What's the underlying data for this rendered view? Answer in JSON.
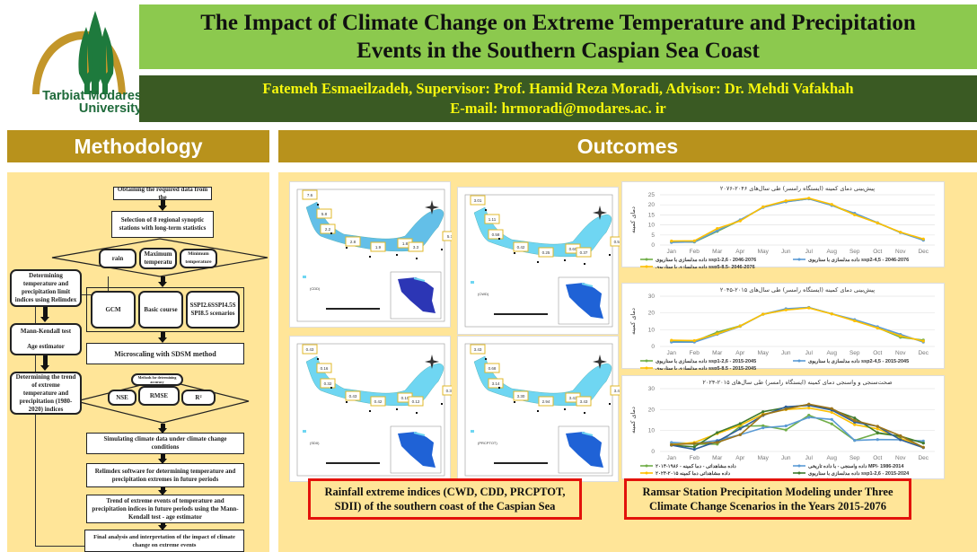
{
  "header": {
    "university": [
      "Tarbiat Modares",
      "University"
    ],
    "title_lines": [
      "The Impact of Climate Change on Extreme Temperature and Precipitation",
      "Events in the Southern Caspian Sea Coast"
    ],
    "authors": "Fatemeh Esmaeilzadeh, Supervisor: Prof. Hamid Reza Moradi, Advisor: Dr. Mehdi Vafakhah",
    "email": "E-mail: hrmoradi@modares.ac. ir"
  },
  "sections": {
    "methodology": "Methodology",
    "outcomes": "Outcomes"
  },
  "flowchart": {
    "obtain": "Obtaining the required data from the",
    "selection": "Selection of 8 regional synoptic stations with long-term statistics",
    "rain": "rain",
    "max_temp": "Maximum temperatu",
    "min_temp": "Minimum temperature",
    "determining": "Determining temperature and precipitation limit indices using Relimdex",
    "gcm": "GCM",
    "basic": "Basic course",
    "scenarios": "SSPI2.6SSPI4.5S SPI8.5 scenarios",
    "mann": "Mann-Kendall test",
    "age": "Age estimator",
    "sdsm": "Microscaling with SDSM method",
    "accuracy": "Methods for determining accuracy",
    "nse": "NSE",
    "rmse": "RMSE",
    "r2": "R²",
    "trend_hist": "Determining the trend of extreme temperature and precipitation (1980-2020) indices",
    "simulate": "Simulating climate data under climate change conditions",
    "relimdex_future": "Relimdex software for determining temperature and precipitation extremes in future periods",
    "trend_future": "Trend of extreme events of temperature and precipitation indices in future periods using the Mann-Kendall test - age estimator",
    "final": "Final analysis and interpretation of the impact of climate change on extreme events"
  },
  "maps": {
    "panels": [
      {
        "index": "CDD",
        "values": [
          "7.6",
          "5.8",
          "2.2",
          "2.8",
          "1.9",
          "1.8",
          "3.3",
          "5.7"
        ]
      },
      {
        "index": "CWD",
        "values": [
          "3.01",
          "1.11",
          "0.58",
          "0.42",
          "0.25",
          "0.60",
          "0.37",
          "0.54"
        ]
      },
      {
        "index": "SDII",
        "values": [
          "0.43",
          "0.16",
          "0.32",
          "0.43",
          "0.42",
          "0.10",
          "0.12",
          "0.30"
        ]
      },
      {
        "index": "PRCPTOT",
        "values": [
          "3.43",
          "0.68",
          "3.14",
          "3.30",
          "2.94",
          "3.43",
          "3.43",
          "3.43"
        ]
      }
    ]
  },
  "captions": {
    "maps": "Rainfall extreme indices (CWD, CDD, PRCPTOT, SDII) of the southern coast of the Caspian Sea",
    "charts": "Ramsar Station Precipitation Modeling under Three Climate Change Scenarios in the Years 2015-2076"
  },
  "chart_data": [
    {
      "type": "line",
      "title": "پیش‌بینی دمای کمینه (ایستگاه رامسر) طی سال‌های ۲۰۴۶-۲۰۷۶",
      "ylabel": "دمای کمینه",
      "xlabel": "",
      "categories": [
        "Jan",
        "Feb",
        "Mar",
        "Apr",
        "May",
        "Jun",
        "Jul",
        "Aug",
        "Sep",
        "Oct",
        "Nov",
        "Dec"
      ],
      "ylim": [
        0,
        25
      ],
      "yticks": [
        0,
        5,
        10,
        15,
        20,
        25
      ],
      "grid": true,
      "legend": "bottom",
      "series": [
        {
          "name": "داده مدلسازی با سناریوی ssp1-2,6 - 2046-2076",
          "color": "#70ad47",
          "values": [
            1.5,
            1.5,
            6.8,
            12.3,
            18.8,
            21.6,
            23.0,
            19.8,
            15.2,
            11.0,
            6.3,
            2.5
          ]
        },
        {
          "name": "داده مدلسازی با سناریوی ssp2-4,5 - 2046-2076",
          "color": "#5b9bd5",
          "values": [
            1.3,
            1.6,
            7.2,
            12.5,
            18.7,
            21.5,
            23.0,
            19.7,
            15.8,
            11.1,
            6.2,
            2.4
          ]
        },
        {
          "name": "داده مدلسازی با سناریوی ssp5-8,5- 2046-2076",
          "color": "#ffc000",
          "values": [
            2.0,
            2.1,
            8.2,
            12.0,
            19.0,
            22.0,
            23.3,
            20.2,
            15.0,
            11.0,
            6.4,
            3.0
          ]
        }
      ]
    },
    {
      "type": "line",
      "title": "پیش‌بینی دمای کمینه (ایستگاه رامسر) طی سال‌های ۲۰۱۵-۲۰۴۵",
      "ylabel": "دمای کمینه",
      "xlabel": "",
      "categories": [
        "Jan",
        "Feb",
        "Mar",
        "Apr",
        "May",
        "Jun",
        "Jul",
        "Aug",
        "Sep",
        "Oct",
        "Nov",
        "Dec"
      ],
      "ylim": [
        0,
        30
      ],
      "yticks": [
        0,
        10,
        20,
        30
      ],
      "grid": true,
      "legend": "bottom",
      "series": [
        {
          "name": "داده مدلسازی با سناریوی ssp1-2,6 - 2015-2045",
          "color": "#70ad47",
          "values": [
            3.0,
            3.0,
            8.5,
            12.3,
            19.2,
            22.0,
            23.2,
            19.5,
            15.5,
            11.2,
            5.5,
            3.8
          ]
        },
        {
          "name": "داده مدلسازی با سناریوی ssp2-4,5 - 2015-2045",
          "color": "#5b9bd5",
          "values": [
            2.6,
            2.6,
            7.2,
            12.0,
            19.3,
            22.5,
            23.3,
            19.5,
            16.0,
            11.8,
            7.2,
            2.6
          ]
        },
        {
          "name": "داده مدلسازی با سناریوی ssp5-8,5 - 2015-2045",
          "color": "#ffc000",
          "values": [
            3.7,
            3.5,
            7.6,
            12.2,
            19.3,
            21.8,
            23.0,
            19.4,
            15.3,
            11.0,
            6.3,
            3.2
          ]
        }
      ]
    },
    {
      "type": "line",
      "title": "صحت‌سنجی و واسنجی دمای کمینه (ایستگاه رامسر) طی سال‌های ۲۰۱۵-۲۰۲۴",
      "ylabel": "دمای کمینه",
      "xlabel": "",
      "categories": [
        "Jan",
        "Feb",
        "Mar",
        "Apr",
        "May",
        "Jun",
        "Jul",
        "Aug",
        "Sep",
        "Oct",
        "Nov",
        "Dec"
      ],
      "ylim": [
        0,
        30
      ],
      "yticks": [
        0,
        10,
        20,
        30
      ],
      "grid": true,
      "legend": "bottom",
      "series": [
        {
          "name": "داده مشاهداتی - دما کمینه - ۱۹۸۶-۲۰۱۴",
          "color": "#70ad47",
          "values": [
            4.0,
            3.5,
            3.5,
            12.0,
            12.3,
            10.3,
            17.3,
            13.2,
            5.3,
            8.7,
            7.3,
            4.0
          ]
        },
        {
          "name": "داده واسنجی - با داده تاریخی MPI- 1986-2014",
          "color": "#5b9bd5",
          "values": [
            4.3,
            3.8,
            5.3,
            8.0,
            11.3,
            12.2,
            16.3,
            15.3,
            5.3,
            5.7,
            5.6,
            5.0
          ]
        },
        {
          "name": "داده مشاهداتی دما کمینه ۲۰۱۵-۲۰۲۴",
          "color": "#ffc000",
          "values": [
            3.3,
            4.3,
            8.5,
            12.5,
            17.8,
            20.0,
            20.8,
            18.7,
            12.8,
            10.8,
            6.3,
            2.0
          ]
        },
        {
          "name": "داده مدلسازی با سناریوی ssp1-2,6 - 2015-2024",
          "color": "#3f7a2e",
          "values": [
            3.0,
            2.2,
            9.0,
            13.3,
            19.0,
            21.0,
            22.3,
            20.0,
            16.0,
            9.0,
            7.2,
            4.0
          ]
        },
        {
          "name": "داده مدلسازی با سناریوی ssp2-4,5 - 2015-2024",
          "color": "#2e5f9a",
          "values": [
            3.0,
            1.0,
            4.8,
            10.8,
            17.2,
            21.3,
            22.0,
            19.8,
            14.0,
            12.0,
            5.6,
            1.8
          ]
        },
        {
          "name": "داده مدلسازی با سناریوی ssp5-8,5 - 2015-2024",
          "color": "#9c7418",
          "values": [
            3.2,
            3.8,
            4.3,
            8.0,
            17.5,
            20.2,
            22.6,
            20.5,
            14.8,
            12.0,
            7.5,
            2.0
          ]
        }
      ]
    }
  ]
}
